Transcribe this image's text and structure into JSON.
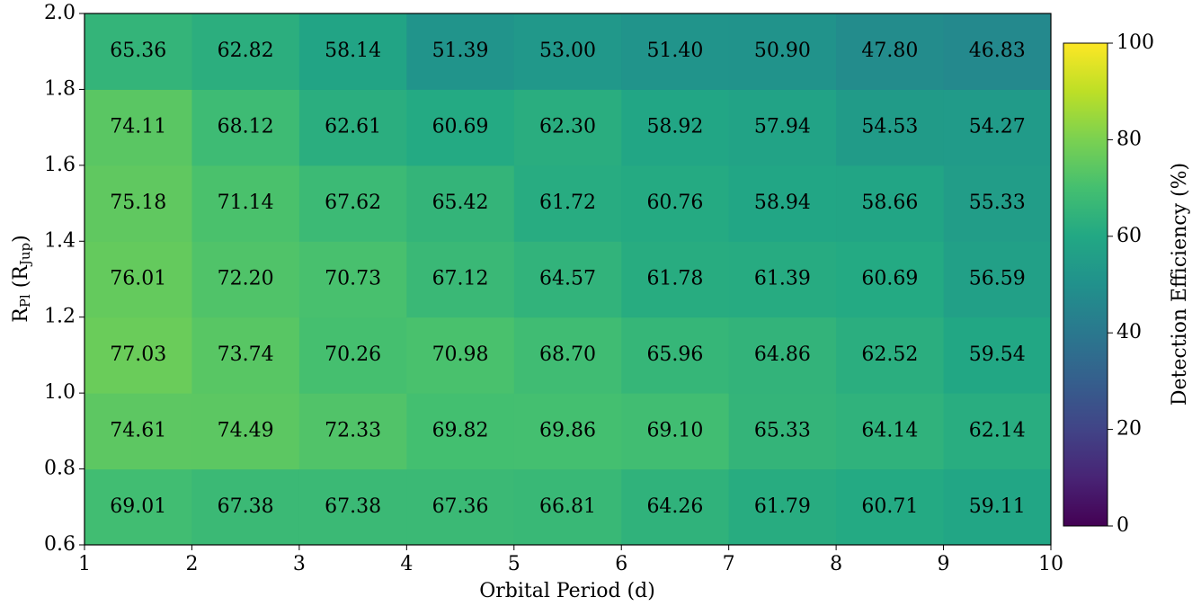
{
  "chart_data": {
    "type": "heatmap",
    "xlabel": "Orbital Period (d)",
    "ylabel": [
      "R",
      "Pl",
      " (R",
      "Jup",
      ")"
    ],
    "xbins": [
      1,
      2,
      3,
      4,
      5,
      6,
      7,
      8,
      9,
      10
    ],
    "ybins": [
      0.6,
      0.8,
      1.0,
      1.2,
      1.4,
      1.6,
      1.8,
      2.0
    ],
    "values": [
      [
        69.01,
        67.38,
        67.38,
        67.36,
        66.81,
        64.26,
        61.79,
        60.71,
        59.11
      ],
      [
        74.61,
        74.49,
        72.33,
        69.82,
        69.86,
        69.1,
        65.33,
        64.14,
        62.14
      ],
      [
        77.03,
        73.74,
        70.26,
        70.98,
        68.7,
        65.96,
        64.86,
        62.52,
        59.54
      ],
      [
        76.01,
        72.2,
        70.73,
        67.12,
        64.57,
        61.78,
        61.39,
        60.69,
        56.59
      ],
      [
        75.18,
        71.14,
        67.62,
        65.42,
        61.72,
        60.76,
        58.94,
        58.66,
        55.33
      ],
      [
        74.11,
        68.12,
        62.61,
        60.69,
        62.3,
        58.92,
        57.94,
        54.53,
        54.27
      ],
      [
        65.36,
        62.82,
        58.14,
        51.39,
        53.0,
        51.4,
        50.9,
        47.8,
        46.83
      ]
    ],
    "value_labels": [
      [
        "69.01",
        "67.38",
        "67.38",
        "67.36",
        "66.81",
        "64.26",
        "61.79",
        "60.71",
        "59.11"
      ],
      [
        "74.61",
        "74.49",
        "72.33",
        "69.82",
        "69.86",
        "69.10",
        "65.33",
        "64.14",
        "62.14"
      ],
      [
        "77.03",
        "73.74",
        "70.26",
        "70.98",
        "68.70",
        "65.96",
        "64.86",
        "62.52",
        "59.54"
      ],
      [
        "76.01",
        "72.20",
        "70.73",
        "67.12",
        "64.57",
        "61.78",
        "61.39",
        "60.69",
        "56.59"
      ],
      [
        "75.18",
        "71.14",
        "67.62",
        "65.42",
        "61.72",
        "60.76",
        "58.94",
        "58.66",
        "55.33"
      ],
      [
        "74.11",
        "68.12",
        "62.61",
        "60.69",
        "62.30",
        "58.92",
        "57.94",
        "54.53",
        "54.27"
      ],
      [
        "65.36",
        "62.82",
        "58.14",
        "51.39",
        "53.00",
        "51.40",
        "50.90",
        "47.80",
        "46.83"
      ]
    ],
    "xlim": [
      1,
      10
    ],
    "ylim": [
      0.6,
      2.0
    ],
    "xticks": [
      1,
      2,
      3,
      4,
      5,
      6,
      7,
      8,
      9,
      10
    ],
    "yticks": [
      0.6,
      0.8,
      {
        "value": 1.0,
        "label": "1.0"
      },
      1.2,
      1.4,
      1.6,
      1.8,
      {
        "value": 2.0,
        "label": "2.0"
      }
    ],
    "colormap": "viridis",
    "clim": [
      0,
      100
    ],
    "cticks": [
      0,
      20,
      40,
      60,
      80,
      100
    ],
    "clabel": "Detection Efficiency (%)"
  }
}
